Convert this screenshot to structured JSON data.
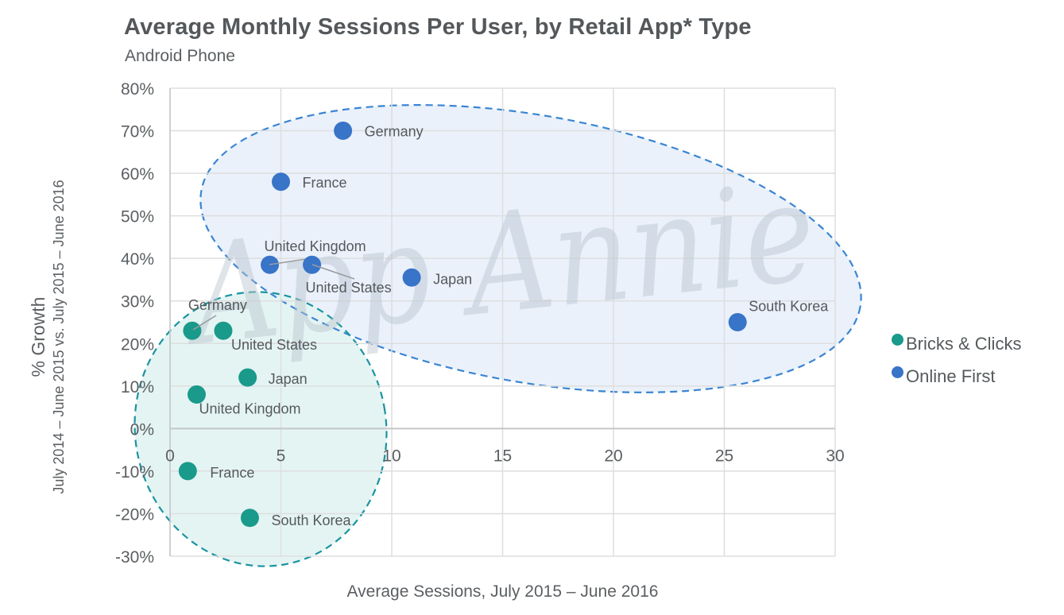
{
  "header": {
    "title": "Average Monthly Sessions Per User, by Retail App* Type",
    "subtitle": "Android Phone"
  },
  "axes": {
    "y_title": "% Growth",
    "y_subtitle": "July 2014 – June 2015 vs. July 2015 – June 2016",
    "x_title": "Average Sessions, July 2015 – June 2016",
    "y_ticks": [
      "80%",
      "70%",
      "60%",
      "50%",
      "40%",
      "30%",
      "20%",
      "10%",
      "0%",
      "-10%",
      "-20%",
      "-30%"
    ],
    "x_ticks": [
      "0",
      "5",
      "10",
      "15",
      "20",
      "25",
      "30"
    ]
  },
  "watermark": "App Annie",
  "legend": [
    {
      "label": "Bricks & Clicks",
      "color": "#1a9a8a"
    },
    {
      "label": "Online First",
      "color": "#3874c8"
    }
  ],
  "colors": {
    "bricks": "#1a9a8a",
    "online": "#3874c8",
    "bricks_fill": "#e4f4f3",
    "online_fill": "#eaf1fb",
    "grid": "#dedede"
  },
  "chart_data": {
    "type": "scatter",
    "title": "Average Monthly Sessions Per User, by Retail App* Type",
    "subtitle": "Android Phone",
    "xlabel": "Average Sessions, July 2015 – June 2016",
    "ylabel": "% Growth July 2014 – June 2015 vs. July 2015 – June 2016",
    "xlim": [
      0,
      30
    ],
    "ylim": [
      -30,
      80
    ],
    "x_ticks": [
      0,
      5,
      10,
      15,
      20,
      25,
      30
    ],
    "y_ticks": [
      -30,
      -20,
      -10,
      0,
      10,
      20,
      30,
      40,
      50,
      60,
      70,
      80
    ],
    "grid": true,
    "legend_position": "right",
    "series": [
      {
        "name": "Bricks & Clicks",
        "color": "#1a9a8a",
        "points": [
          {
            "label": "Germany",
            "x": 1.0,
            "y": 23
          },
          {
            "label": "United States",
            "x": 2.4,
            "y": 23
          },
          {
            "label": "Japan",
            "x": 3.5,
            "y": 12
          },
          {
            "label": "United Kingdom",
            "x": 1.2,
            "y": 8
          },
          {
            "label": "France",
            "x": 0.8,
            "y": -10
          },
          {
            "label": "South Korea",
            "x": 3.6,
            "y": -21
          }
        ]
      },
      {
        "name": "Online First",
        "color": "#3874c8",
        "points": [
          {
            "label": "Germany",
            "x": 7.8,
            "y": 70
          },
          {
            "label": "France",
            "x": 5.0,
            "y": 58
          },
          {
            "label": "United Kingdom",
            "x": 4.5,
            "y": 38.5
          },
          {
            "label": "United States",
            "x": 6.4,
            "y": 38.5
          },
          {
            "label": "Japan",
            "x": 10.9,
            "y": 35.5
          },
          {
            "label": "South Korea",
            "x": 25.6,
            "y": 25
          }
        ]
      }
    ]
  }
}
